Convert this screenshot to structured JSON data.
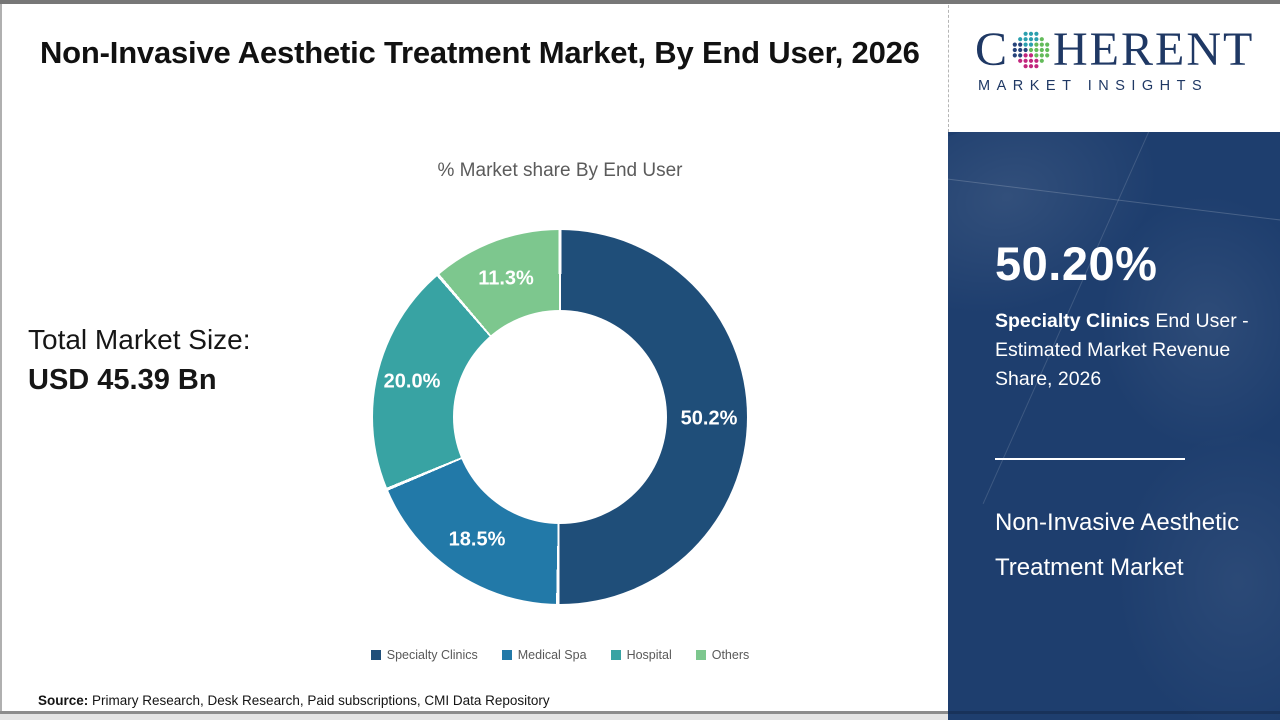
{
  "header": {
    "title": "Non-Invasive Aesthetic Treatment Market, By End User, 2026"
  },
  "logo": {
    "name": "Coherent Market Insights",
    "word_start": "C",
    "word_end": "HERENT",
    "subtitle": "MARKET INSIGHTS",
    "text_color": "#1f3864",
    "globe_colors": [
      "#25427a",
      "#2a9fae",
      "#63bb5a",
      "#c2267d"
    ]
  },
  "left_panel": {
    "total_label": "Total Market Size:",
    "total_value": "USD 45.39 Bn"
  },
  "chart_data": {
    "type": "pie",
    "subtype": "donut",
    "title": "% Market share By End User",
    "categories": [
      "Specialty Clinics",
      "Medical Spa",
      "Hospital",
      "Others"
    ],
    "values": [
      50.2,
      18.5,
      20.0,
      11.3
    ],
    "labels": [
      "50.2%",
      "18.5%",
      "20.0%",
      "11.3%"
    ],
    "colors": [
      "#1f4e79",
      "#2279a8",
      "#38a3a3",
      "#7dc78e"
    ],
    "start_angle_deg": 0,
    "direction": "clockwise",
    "legend_position": "bottom"
  },
  "sidebar": {
    "headline": "50.20%",
    "highlight": "Specialty Clinics",
    "description_rest": " End User - Estimated Market Revenue Share, 2026",
    "market_name": "Non-Invasive Aesthetic Treatment Market",
    "bg_color": "#1e3e6e"
  },
  "footer": {
    "source_label": "Source:",
    "source_text": " Primary Research, Desk Research, Paid subscriptions, CMI Data Repository"
  }
}
